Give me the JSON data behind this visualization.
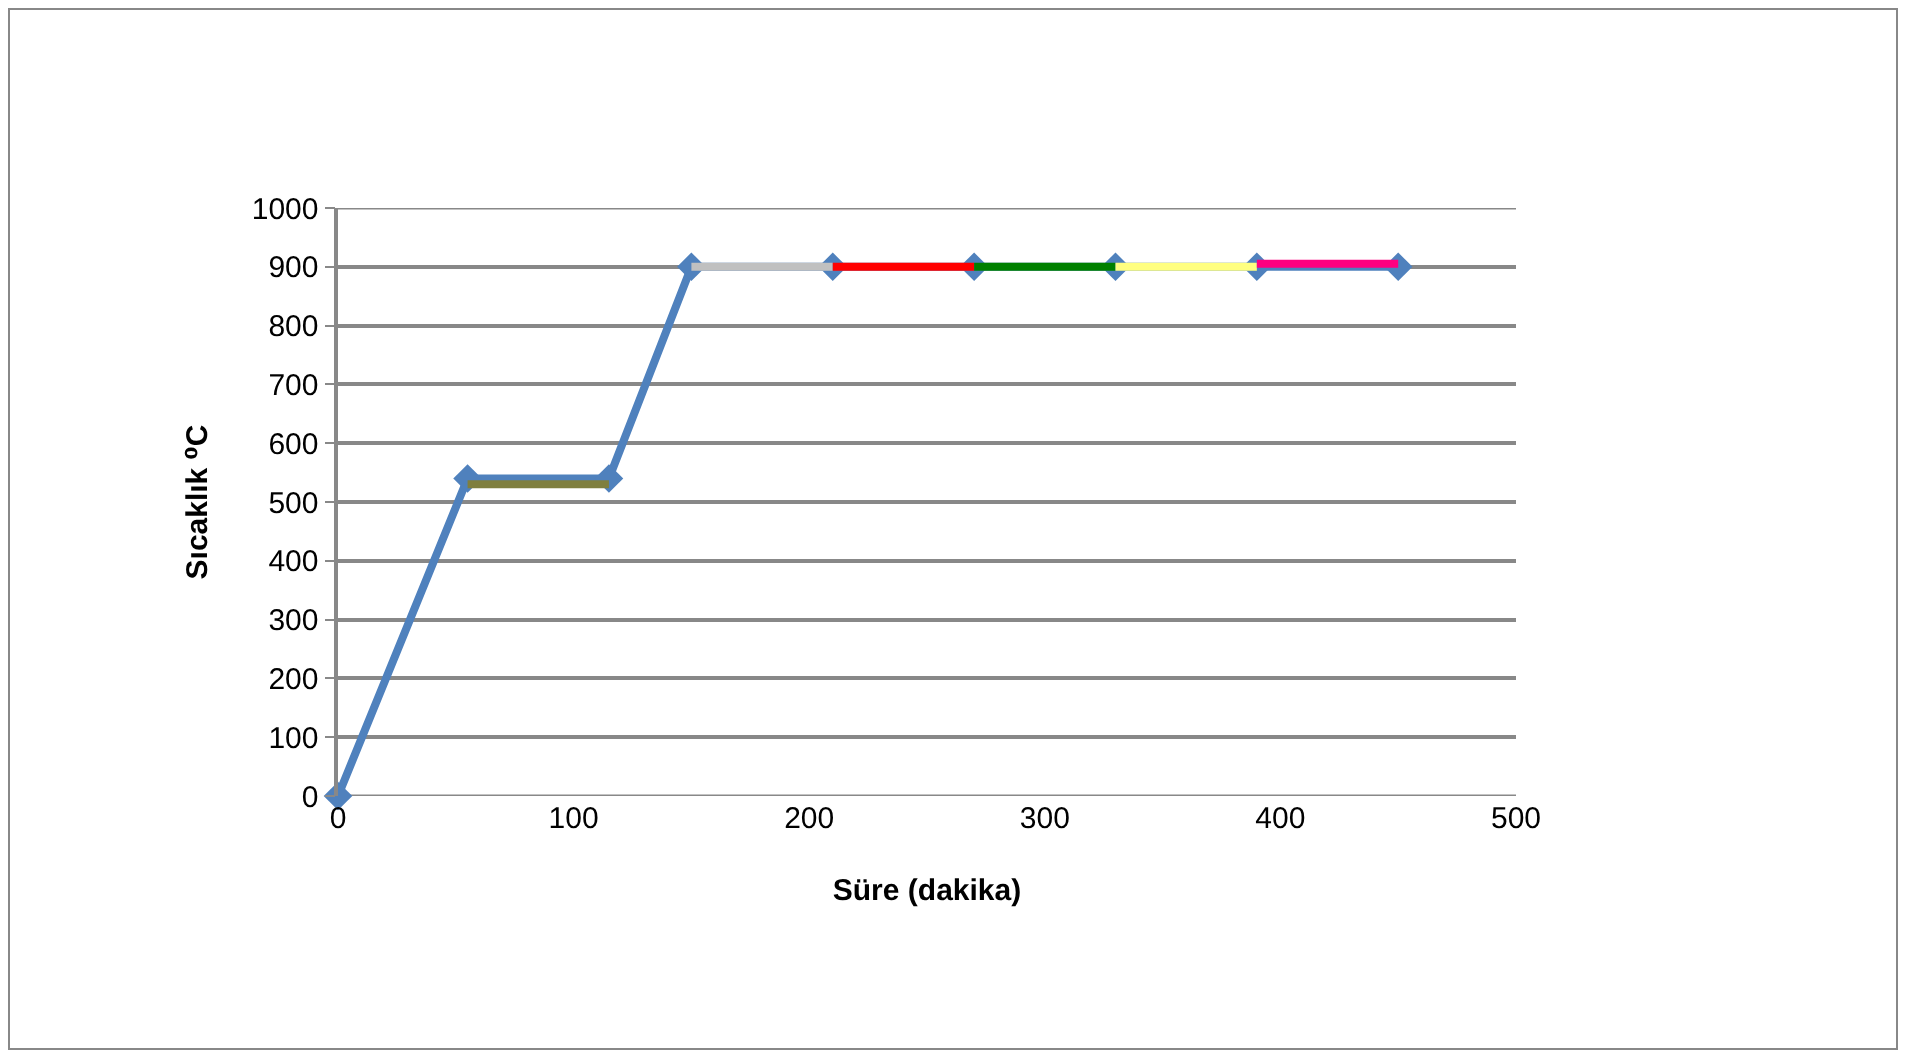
{
  "chart_data": {
    "type": "line",
    "xlabel": "Süre (dakika)",
    "ylabel": "Sıcaklık ⁰C",
    "xlim": [
      0,
      500
    ],
    "xticks": [
      0,
      100,
      200,
      300,
      400,
      500
    ],
    "ylim": [
      0,
      1000
    ],
    "yticks": [
      0,
      100,
      200,
      300,
      400,
      500,
      600,
      700,
      800,
      900,
      1000
    ],
    "grid": "y",
    "line_style": "solid",
    "series": [
      {
        "color": "#4f81bd",
        "marker": "diamond",
        "x": [
          0,
          55,
          115,
          150,
          210,
          270,
          330,
          390,
          450
        ],
        "values": [
          0,
          540,
          540,
          900,
          900,
          900,
          900,
          900,
          900
        ]
      },
      {
        "color": "#7f7f3f",
        "marker": "none",
        "x": [
          55,
          115
        ],
        "values": [
          530,
          530
        ]
      },
      {
        "color": "#c0c0c0",
        "marker": "none",
        "x": [
          150,
          210
        ],
        "values": [
          900,
          900
        ]
      },
      {
        "color": "#ff0000",
        "marker": "none",
        "x": [
          210,
          270
        ],
        "values": [
          900,
          900
        ]
      },
      {
        "color": "#008000",
        "marker": "none",
        "x": [
          270,
          330
        ],
        "values": [
          900,
          900
        ]
      },
      {
        "color": "#ffff80",
        "marker": "none",
        "x": [
          330,
          390
        ],
        "values": [
          900,
          900
        ]
      },
      {
        "color": "#ff0080",
        "marker": "none",
        "x": [
          390,
          450
        ],
        "values": [
          905,
          905
        ]
      }
    ]
  }
}
